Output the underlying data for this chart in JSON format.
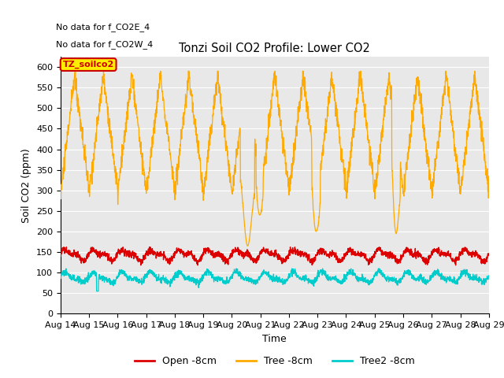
{
  "title": "Tonzi Soil CO2 Profile: Lower CO2",
  "xlabel": "Time",
  "ylabel": "Soil CO2 (ppm)",
  "ylim": [
    0,
    625
  ],
  "yticks": [
    0,
    50,
    100,
    150,
    200,
    250,
    300,
    350,
    400,
    450,
    500,
    550,
    600
  ],
  "annotations": [
    "No data for f_CO2E_4",
    "No data for f_CO2W_4"
  ],
  "legend_box_label": "TZ_soilco2",
  "legend_box_facecolor": "#ffee00",
  "legend_box_edgecolor": "#cc0000",
  "legend_items": [
    {
      "label": "Open -8cm",
      "color": "#dd0000"
    },
    {
      "label": "Tree -8cm",
      "color": "#ffaa00"
    },
    {
      "label": "Tree2 -8cm",
      "color": "#00cccc"
    }
  ],
  "n_days": 15,
  "start_day": 14,
  "bg_color": "#ffffff",
  "plot_bg": "#e8e8e8",
  "grid_color": "#ffffff"
}
